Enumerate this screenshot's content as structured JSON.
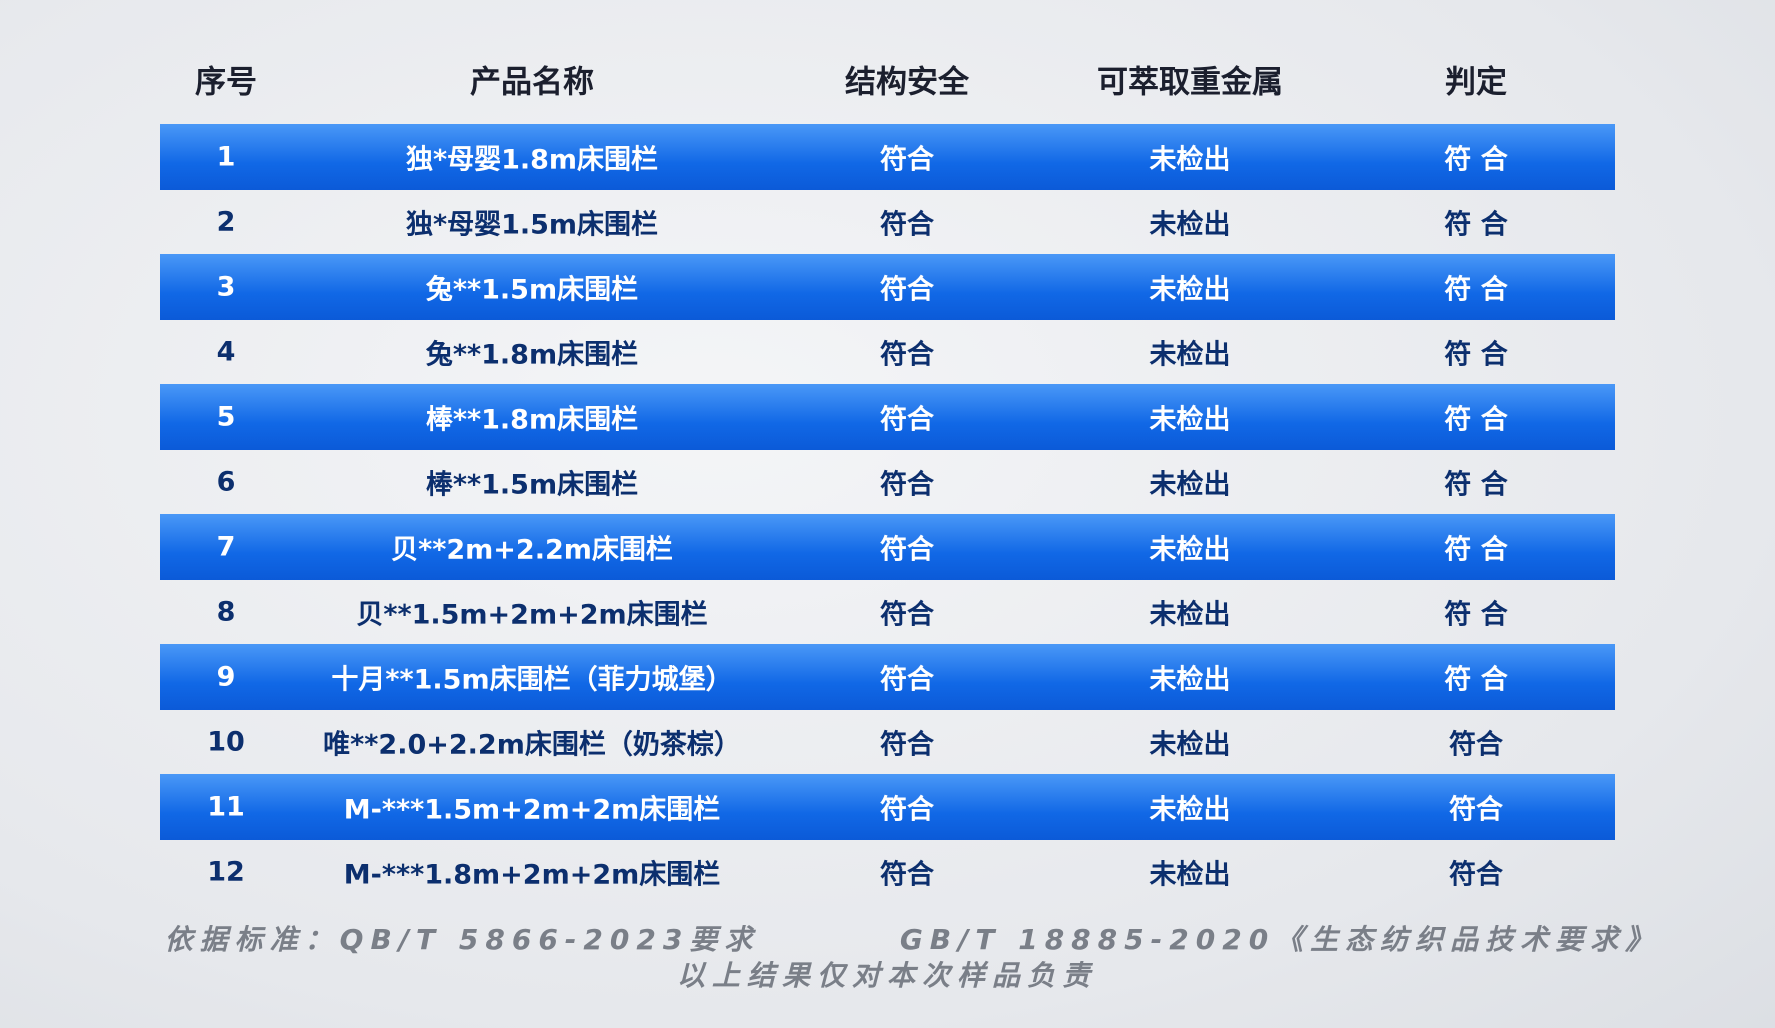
{
  "table": {
    "header": [
      "序号",
      "产品名称",
      "结构安全",
      "可萃取重金属",
      "判定"
    ],
    "rows": [
      [
        "1",
        "独*母婴1.8m床围栏",
        "符合",
        "未检出",
        "符 合"
      ],
      [
        "2",
        "独*母婴1.5m床围栏",
        "符合",
        "未检出",
        "符 合"
      ],
      [
        "3",
        "兔**1.5m床围栏",
        "符合",
        "未检出",
        "符 合"
      ],
      [
        "4",
        "兔**1.8m床围栏",
        "符合",
        "未检出",
        "符 合"
      ],
      [
        "5",
        "棒**1.8m床围栏",
        "符合",
        "未检出",
        "符 合"
      ],
      [
        "6",
        "棒**1.5m床围栏",
        "符合",
        "未检出",
        "符 合"
      ],
      [
        "7",
        "贝**2m+2.2m床围栏",
        "符合",
        "未检出",
        "符 合"
      ],
      [
        "8",
        "贝**1.5m+2m+2m床围栏",
        "符合",
        "未检出",
        "符 合"
      ],
      [
        "9",
        "十月**1.5m床围栏（菲力城堡）",
        "符合",
        "未检出",
        "符 合"
      ],
      [
        "10",
        "唯**2.0+2.2m床围栏（奶茶棕）",
        "符合",
        "未检出",
        "符合"
      ],
      [
        "11",
        "M-***1.5m+2m+2m床围栏",
        "符合",
        "未检出",
        "符合"
      ],
      [
        "12",
        "M-***1.8m+2m+2m床围栏",
        "符合",
        "未检出",
        "符合"
      ]
    ]
  },
  "footer": {
    "standard_1": "依据标准：QB/T 5866-2023要求",
    "standard_2": "GB/T 18885-2020《生态纺织品技术要求》",
    "note": "以上结果仅对本次样品负责"
  }
}
